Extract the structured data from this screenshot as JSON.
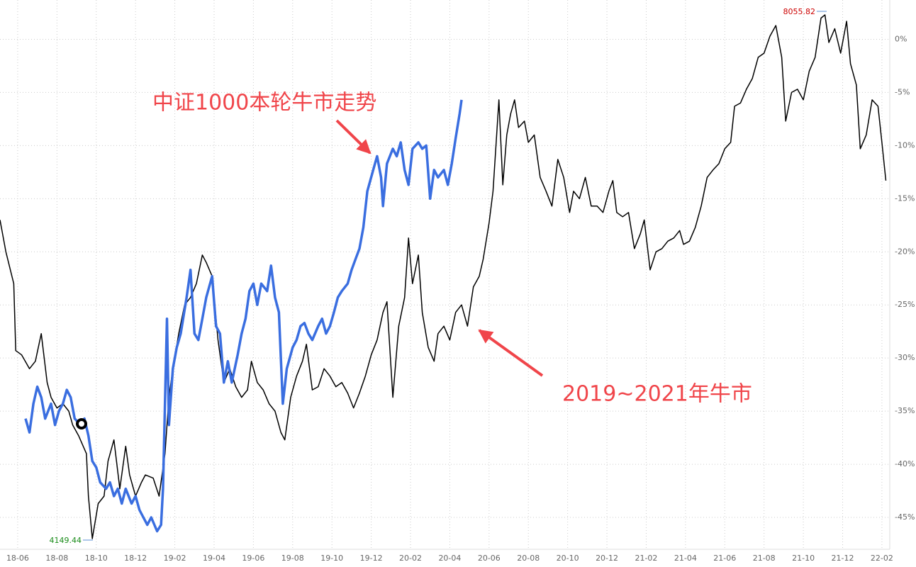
{
  "chart_data": {
    "type": "line",
    "annotations": [
      "中证1000本轮牛市走势",
      "2019~2021年牛市"
    ],
    "max_label": "8055.82",
    "min_label": "4149.44",
    "xlim": [
      -0.9,
      44.4
    ],
    "ylim": [
      -48,
      3.7
    ],
    "grid": true,
    "xticks": [
      {
        "value": 0,
        "label": "18-06"
      },
      {
        "value": 2,
        "label": "18-08"
      },
      {
        "value": 4,
        "label": "18-10"
      },
      {
        "value": 6,
        "label": "18-12"
      },
      {
        "value": 8,
        "label": "19-02"
      },
      {
        "value": 10,
        "label": "19-04"
      },
      {
        "value": 12,
        "label": "19-06"
      },
      {
        "value": 14,
        "label": "19-08"
      },
      {
        "value": 16,
        "label": "19-10"
      },
      {
        "value": 18,
        "label": "19-12"
      },
      {
        "value": 20,
        "label": "20-02"
      },
      {
        "value": 22,
        "label": "20-04"
      },
      {
        "value": 24,
        "label": "20-06"
      },
      {
        "value": 26,
        "label": "20-08"
      },
      {
        "value": 28,
        "label": "20-10"
      },
      {
        "value": 30,
        "label": "20-12"
      },
      {
        "value": 32,
        "label": "21-02"
      },
      {
        "value": 34,
        "label": "21-04"
      },
      {
        "value": 36,
        "label": "21-06"
      },
      {
        "value": 38,
        "label": "21-08"
      },
      {
        "value": 40,
        "label": "21-10"
      },
      {
        "value": 42,
        "label": "21-12"
      },
      {
        "value": 44,
        "label": "22-02"
      }
    ],
    "yticks": [
      {
        "value": 0,
        "label": "0%"
      },
      {
        "value": -5,
        "label": "-5%"
      },
      {
        "value": -10,
        "label": "-10%"
      },
      {
        "value": -15,
        "label": "-15%"
      },
      {
        "value": -20,
        "label": "-20%"
      },
      {
        "value": -25,
        "label": "-25%"
      },
      {
        "value": -30,
        "label": "-30%"
      },
      {
        "value": -35,
        "label": "-35%"
      },
      {
        "value": -40,
        "label": "-40%"
      },
      {
        "value": -45,
        "label": "-45%"
      }
    ],
    "series": [
      {
        "color": "#000000",
        "width": 1.5,
        "x": [
          -0.9,
          -0.6,
          -0.2,
          -0.1,
          0.2,
          0.6,
          0.9,
          1.2,
          1.5,
          1.7,
          2.0,
          2.3,
          2.6,
          2.8,
          3.1,
          3.5,
          3.6,
          3.8,
          4.1,
          4.4,
          4.6,
          4.9,
          5.2,
          5.5,
          5.7,
          6.0,
          6.3,
          6.5,
          6.9,
          7.2,
          7.5,
          7.7,
          7.9,
          8.2,
          8.5,
          8.8,
          9.1,
          9.4,
          9.6,
          9.9,
          10.2,
          10.5,
          10.8,
          11.1,
          11.4,
          11.7,
          11.9,
          12.2,
          12.5,
          12.8,
          13.1,
          13.4,
          13.6,
          13.9,
          14.2,
          14.5,
          14.7,
          15.0,
          15.3,
          15.6,
          15.9,
          16.2,
          16.5,
          16.8,
          17.1,
          17.4,
          17.7,
          18.0,
          18.3,
          18.6,
          18.8,
          19.1,
          19.4,
          19.7,
          19.9,
          20.1,
          20.4,
          20.6,
          20.9,
          21.2,
          21.4,
          21.7,
          22.0,
          22.3,
          22.6,
          22.9,
          23.2,
          23.5,
          23.7,
          24.0,
          24.2,
          24.5,
          24.7,
          24.9,
          25.1,
          25.3,
          25.5,
          25.8,
          26.0,
          26.3,
          26.6,
          26.9,
          27.2,
          27.5,
          27.8,
          28.1,
          28.3,
          28.6,
          28.9,
          29.2,
          29.5,
          29.8,
          30.1,
          30.3,
          30.5,
          30.8,
          31.1,
          31.4,
          31.7,
          31.9,
          32.2,
          32.5,
          32.8,
          33.1,
          33.4,
          33.7,
          33.9,
          34.2,
          34.5,
          34.8,
          35.1,
          35.4,
          35.7,
          36.0,
          36.3,
          36.5,
          36.8,
          37.1,
          37.4,
          37.7,
          38.0,
          38.3,
          38.6,
          38.9,
          39.1,
          39.4,
          39.7,
          40.0,
          40.3,
          40.6,
          40.9,
          41.1,
          41.3,
          41.6,
          41.9,
          42.2,
          42.4,
          42.7,
          42.9,
          43.2,
          43.5,
          43.8,
          44.0,
          44.2
        ],
        "values": [
          -17.0,
          -20.0,
          -23.0,
          -29.3,
          -29.7,
          -31.0,
          -30.3,
          -27.7,
          -32.3,
          -33.7,
          -34.7,
          -34.3,
          -35.0,
          -36.3,
          -37.3,
          -39.0,
          -43.0,
          -47.0,
          -43.7,
          -43.0,
          -39.7,
          -37.7,
          -42.3,
          -38.3,
          -41.0,
          -43.0,
          -41.7,
          -41.0,
          -41.3,
          -43.0,
          -39.0,
          -33.7,
          -31.0,
          -27.7,
          -25.0,
          -24.3,
          -23.0,
          -20.3,
          -21.0,
          -22.3,
          -28.3,
          -32.3,
          -31.0,
          -32.7,
          -33.7,
          -33.0,
          -30.3,
          -32.3,
          -33.0,
          -34.3,
          -35.0,
          -37.0,
          -37.7,
          -33.7,
          -31.7,
          -30.3,
          -28.7,
          -33.0,
          -32.7,
          -31.0,
          -31.7,
          -32.7,
          -32.3,
          -33.3,
          -34.7,
          -33.3,
          -31.7,
          -29.7,
          -28.3,
          -25.7,
          -24.7,
          -33.7,
          -27.0,
          -24.3,
          -18.7,
          -23.0,
          -20.3,
          -25.7,
          -29.0,
          -30.3,
          -27.7,
          -27.0,
          -28.3,
          -25.7,
          -25.0,
          -27.0,
          -23.3,
          -22.3,
          -20.7,
          -17.3,
          -14.3,
          -5.7,
          -13.7,
          -9.0,
          -7.0,
          -5.7,
          -8.3,
          -7.7,
          -9.7,
          -9.0,
          -13.0,
          -14.3,
          -15.7,
          -11.3,
          -13.0,
          -16.3,
          -14.3,
          -15.0,
          -13.0,
          -15.7,
          -15.7,
          -16.3,
          -14.3,
          -13.3,
          -16.3,
          -16.7,
          -16.3,
          -19.7,
          -18.3,
          -17.0,
          -21.7,
          -20.0,
          -19.7,
          -19.0,
          -18.7,
          -18.0,
          -19.3,
          -19.0,
          -17.7,
          -15.7,
          -13.0,
          -12.3,
          -11.7,
          -10.3,
          -9.7,
          -6.3,
          -6.0,
          -4.7,
          -3.7,
          -1.7,
          -1.3,
          0.3,
          1.3,
          -1.7,
          -7.7,
          -5.0,
          -4.7,
          -5.7,
          -3.0,
          -1.7,
          2.0,
          2.3,
          -0.3,
          1.0,
          -1.3,
          1.7,
          -2.3,
          -4.3,
          -10.3,
          -9.0,
          -5.7,
          -6.3,
          -9.7,
          -13.3
        ]
      },
      {
        "color": "#3a6ee0",
        "width": 3.5,
        "x": [
          0.4,
          0.6,
          0.8,
          1.0,
          1.2,
          1.4,
          1.7,
          1.9,
          2.1,
          2.3,
          2.5,
          2.7,
          2.9,
          3.2,
          3.4,
          3.6,
          3.8,
          4.0,
          4.2,
          4.5,
          4.7,
          4.9,
          5.1,
          5.3,
          5.5,
          5.8,
          6.0,
          6.2,
          6.4,
          6.6,
          6.8,
          7.1,
          7.3,
          7.4,
          7.6,
          7.7,
          7.9,
          8.1,
          8.3,
          8.6,
          8.8,
          9.0,
          9.2,
          9.4,
          9.6,
          9.9,
          10.1,
          10.3,
          10.5,
          10.7,
          10.9,
          11.2,
          11.4,
          11.6,
          11.8,
          12.0,
          12.2,
          12.4,
          12.7,
          12.9,
          13.1,
          13.3,
          13.5,
          13.7,
          14.0,
          14.2,
          14.4,
          14.6,
          14.8,
          15.0,
          15.3,
          15.5,
          15.7,
          15.9,
          16.1,
          16.3,
          16.5,
          16.8,
          17.0,
          17.2,
          17.4,
          17.6,
          17.8,
          18.1,
          18.3,
          18.5,
          18.6,
          18.8,
          19.1,
          19.3,
          19.5,
          19.7,
          19.9,
          20.1,
          20.4,
          20.6,
          20.8,
          21.0,
          21.2,
          21.4,
          21.7,
          21.9,
          22.1,
          22.3,
          22.5,
          22.6
        ],
        "values": [
          -35.7,
          -37.0,
          -34.3,
          -32.7,
          -33.7,
          -35.7,
          -34.3,
          -36.3,
          -35.0,
          -34.3,
          -33.0,
          -33.7,
          -35.7,
          -36.3,
          -35.7,
          -37.3,
          -39.7,
          -40.3,
          -41.7,
          -42.3,
          -41.7,
          -43.0,
          -42.3,
          -43.7,
          -42.3,
          -43.7,
          -43.0,
          -44.3,
          -45.0,
          -45.7,
          -45.0,
          -46.3,
          -45.7,
          -42.3,
          -26.3,
          -36.3,
          -31.0,
          -29.0,
          -27.7,
          -24.3,
          -21.7,
          -27.7,
          -28.3,
          -26.3,
          -24.3,
          -22.3,
          -27.0,
          -27.7,
          -32.3,
          -30.3,
          -32.3,
          -29.7,
          -27.7,
          -26.3,
          -23.7,
          -23.0,
          -25.0,
          -23.0,
          -23.7,
          -21.3,
          -24.3,
          -25.7,
          -34.3,
          -31.0,
          -29.0,
          -28.3,
          -27.0,
          -26.7,
          -27.7,
          -28.3,
          -27.0,
          -26.3,
          -27.7,
          -27.0,
          -25.7,
          -24.3,
          -23.7,
          -23.0,
          -21.7,
          -20.7,
          -19.7,
          -17.7,
          -14.3,
          -12.3,
          -11.0,
          -13.0,
          -15.7,
          -11.7,
          -10.3,
          -11.0,
          -9.7,
          -12.3,
          -13.7,
          -10.3,
          -9.7,
          -10.3,
          -10.0,
          -15.0,
          -12.3,
          -13.0,
          -12.3,
          -13.7,
          -11.7,
          -9.3,
          -7.0,
          -5.7
        ]
      }
    ]
  }
}
